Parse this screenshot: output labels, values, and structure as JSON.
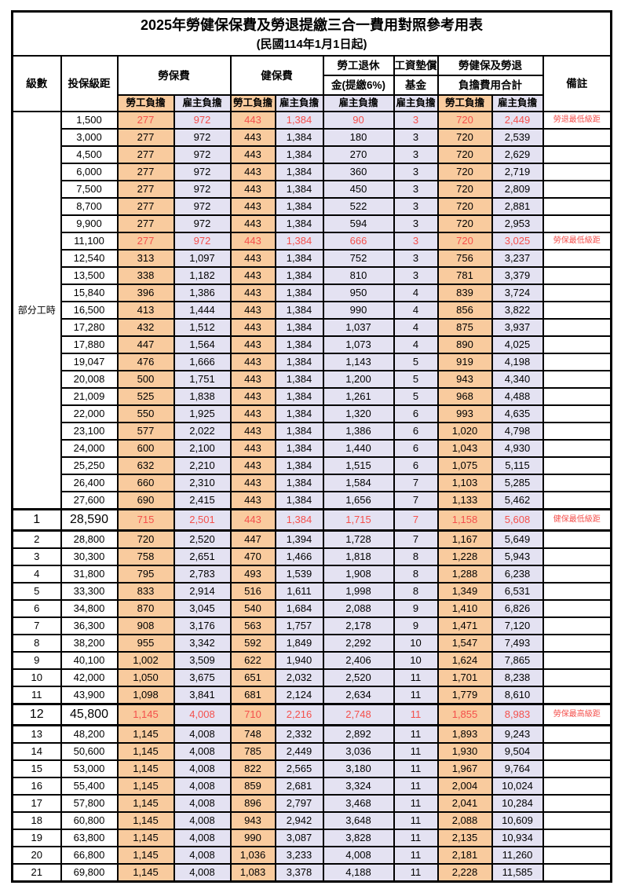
{
  "title": "2025年勞健保保費及勞退提繳三合一費用對照參考用表",
  "subtitle": "(民國114年1月1日起)",
  "header": {
    "level": "級數",
    "bracket": "投保級距",
    "labor_fee": "勞保費",
    "health_fee": "健保費",
    "pension_l1": "勞工退休",
    "pension_l2": "金(提繳6%)",
    "wage_fund_l1": "工資墊償",
    "wage_fund_l2": "基金",
    "total_l1": "勞健保及勞退",
    "total_l2": "負擔費用合計",
    "remark": "備註",
    "employee": "勞工負擔",
    "employer": "雇主負擔"
  },
  "part_time_label": "部分工時",
  "colors": {
    "employee_fill": "#F9CB9E",
    "employer_fill": "#E4E2F2",
    "highlight_text": "#F4504C",
    "grid": "#000000"
  },
  "rows": [
    {
      "level": "",
      "bracket": "1,500",
      "values": [
        "277",
        "972",
        "443",
        "1,384",
        "90",
        "3",
        "720",
        "2,449"
      ],
      "note": "勞退最低級距",
      "highlight": true,
      "emphasis": false
    },
    {
      "level": "",
      "bracket": "3,000",
      "values": [
        "277",
        "972",
        "443",
        "1,384",
        "180",
        "3",
        "720",
        "2,539"
      ],
      "note": "",
      "highlight": false,
      "emphasis": false
    },
    {
      "level": "",
      "bracket": "4,500",
      "values": [
        "277",
        "972",
        "443",
        "1,384",
        "270",
        "3",
        "720",
        "2,629"
      ],
      "note": "",
      "highlight": false,
      "emphasis": false
    },
    {
      "level": "",
      "bracket": "6,000",
      "values": [
        "277",
        "972",
        "443",
        "1,384",
        "360",
        "3",
        "720",
        "2,719"
      ],
      "note": "",
      "highlight": false,
      "emphasis": false
    },
    {
      "level": "",
      "bracket": "7,500",
      "values": [
        "277",
        "972",
        "443",
        "1,384",
        "450",
        "3",
        "720",
        "2,809"
      ],
      "note": "",
      "highlight": false,
      "emphasis": false
    },
    {
      "level": "",
      "bracket": "8,700",
      "values": [
        "277",
        "972",
        "443",
        "1,384",
        "522",
        "3",
        "720",
        "2,881"
      ],
      "note": "",
      "highlight": false,
      "emphasis": false
    },
    {
      "level": "",
      "bracket": "9,900",
      "values": [
        "277",
        "972",
        "443",
        "1,384",
        "594",
        "3",
        "720",
        "2,953"
      ],
      "note": "",
      "highlight": false,
      "emphasis": false
    },
    {
      "level": "",
      "bracket": "11,100",
      "values": [
        "277",
        "972",
        "443",
        "1,384",
        "666",
        "3",
        "720",
        "3,025"
      ],
      "note": "勞保最低級距",
      "highlight": true,
      "emphasis": false
    },
    {
      "level": "",
      "bracket": "12,540",
      "values": [
        "313",
        "1,097",
        "443",
        "1,384",
        "752",
        "3",
        "756",
        "3,237"
      ],
      "note": "",
      "highlight": false,
      "emphasis": false
    },
    {
      "level": "",
      "bracket": "13,500",
      "values": [
        "338",
        "1,182",
        "443",
        "1,384",
        "810",
        "3",
        "781",
        "3,379"
      ],
      "note": "",
      "highlight": false,
      "emphasis": false
    },
    {
      "level": "",
      "bracket": "15,840",
      "values": [
        "396",
        "1,386",
        "443",
        "1,384",
        "950",
        "4",
        "839",
        "3,724"
      ],
      "note": "",
      "highlight": false,
      "emphasis": false
    },
    {
      "level": "",
      "bracket": "16,500",
      "values": [
        "413",
        "1,444",
        "443",
        "1,384",
        "990",
        "4",
        "856",
        "3,822"
      ],
      "note": "",
      "highlight": false,
      "emphasis": false
    },
    {
      "level": "",
      "bracket": "17,280",
      "values": [
        "432",
        "1,512",
        "443",
        "1,384",
        "1,037",
        "4",
        "875",
        "3,937"
      ],
      "note": "",
      "highlight": false,
      "emphasis": false
    },
    {
      "level": "",
      "bracket": "17,880",
      "values": [
        "447",
        "1,564",
        "443",
        "1,384",
        "1,073",
        "4",
        "890",
        "4,025"
      ],
      "note": "",
      "highlight": false,
      "emphasis": false
    },
    {
      "level": "",
      "bracket": "19,047",
      "values": [
        "476",
        "1,666",
        "443",
        "1,384",
        "1,143",
        "5",
        "919",
        "4,198"
      ],
      "note": "",
      "highlight": false,
      "emphasis": false
    },
    {
      "level": "",
      "bracket": "20,008",
      "values": [
        "500",
        "1,751",
        "443",
        "1,384",
        "1,200",
        "5",
        "943",
        "4,340"
      ],
      "note": "",
      "highlight": false,
      "emphasis": false
    },
    {
      "level": "",
      "bracket": "21,009",
      "values": [
        "525",
        "1,838",
        "443",
        "1,384",
        "1,261",
        "5",
        "968",
        "4,488"
      ],
      "note": "",
      "highlight": false,
      "emphasis": false
    },
    {
      "level": "",
      "bracket": "22,000",
      "values": [
        "550",
        "1,925",
        "443",
        "1,384",
        "1,320",
        "6",
        "993",
        "4,635"
      ],
      "note": "",
      "highlight": false,
      "emphasis": false
    },
    {
      "level": "",
      "bracket": "23,100",
      "values": [
        "577",
        "2,022",
        "443",
        "1,384",
        "1,386",
        "6",
        "1,020",
        "4,798"
      ],
      "note": "",
      "highlight": false,
      "emphasis": false
    },
    {
      "level": "",
      "bracket": "24,000",
      "values": [
        "600",
        "2,100",
        "443",
        "1,384",
        "1,440",
        "6",
        "1,043",
        "4,930"
      ],
      "note": "",
      "highlight": false,
      "emphasis": false
    },
    {
      "level": "",
      "bracket": "25,250",
      "values": [
        "632",
        "2,210",
        "443",
        "1,384",
        "1,515",
        "6",
        "1,075",
        "5,115"
      ],
      "note": "",
      "highlight": false,
      "emphasis": false
    },
    {
      "level": "",
      "bracket": "26,400",
      "values": [
        "660",
        "2,310",
        "443",
        "1,384",
        "1,584",
        "7",
        "1,103",
        "5,285"
      ],
      "note": "",
      "highlight": false,
      "emphasis": false
    },
    {
      "level": "",
      "bracket": "27,600",
      "values": [
        "690",
        "2,415",
        "443",
        "1,384",
        "1,656",
        "7",
        "1,133",
        "5,462"
      ],
      "note": "",
      "highlight": false,
      "emphasis": false
    },
    {
      "level": "1",
      "bracket": "28,590",
      "values": [
        "715",
        "2,501",
        "443",
        "1,384",
        "1,715",
        "7",
        "1,158",
        "5,608"
      ],
      "note": "健保最低級距",
      "highlight": true,
      "emphasis": true
    },
    {
      "level": "2",
      "bracket": "28,800",
      "values": [
        "720",
        "2,520",
        "447",
        "1,394",
        "1,728",
        "7",
        "1,167",
        "5,649"
      ],
      "note": "",
      "highlight": false,
      "emphasis": false
    },
    {
      "level": "3",
      "bracket": "30,300",
      "values": [
        "758",
        "2,651",
        "470",
        "1,466",
        "1,818",
        "8",
        "1,228",
        "5,943"
      ],
      "note": "",
      "highlight": false,
      "emphasis": false
    },
    {
      "level": "4",
      "bracket": "31,800",
      "values": [
        "795",
        "2,783",
        "493",
        "1,539",
        "1,908",
        "8",
        "1,288",
        "6,238"
      ],
      "note": "",
      "highlight": false,
      "emphasis": false
    },
    {
      "level": "5",
      "bracket": "33,300",
      "values": [
        "833",
        "2,914",
        "516",
        "1,611",
        "1,998",
        "8",
        "1,349",
        "6,531"
      ],
      "note": "",
      "highlight": false,
      "emphasis": false
    },
    {
      "level": "6",
      "bracket": "34,800",
      "values": [
        "870",
        "3,045",
        "540",
        "1,684",
        "2,088",
        "9",
        "1,410",
        "6,826"
      ],
      "note": "",
      "highlight": false,
      "emphasis": false
    },
    {
      "level": "7",
      "bracket": "36,300",
      "values": [
        "908",
        "3,176",
        "563",
        "1,757",
        "2,178",
        "9",
        "1,471",
        "7,120"
      ],
      "note": "",
      "highlight": false,
      "emphasis": false
    },
    {
      "level": "8",
      "bracket": "38,200",
      "values": [
        "955",
        "3,342",
        "592",
        "1,849",
        "2,292",
        "10",
        "1,547",
        "7,493"
      ],
      "note": "",
      "highlight": false,
      "emphasis": false
    },
    {
      "level": "9",
      "bracket": "40,100",
      "values": [
        "1,002",
        "3,509",
        "622",
        "1,940",
        "2,406",
        "10",
        "1,624",
        "7,865"
      ],
      "note": "",
      "highlight": false,
      "emphasis": false
    },
    {
      "level": "10",
      "bracket": "42,000",
      "values": [
        "1,050",
        "3,675",
        "651",
        "2,032",
        "2,520",
        "11",
        "1,701",
        "8,238"
      ],
      "note": "",
      "highlight": false,
      "emphasis": false
    },
    {
      "level": "11",
      "bracket": "43,900",
      "values": [
        "1,098",
        "3,841",
        "681",
        "2,124",
        "2,634",
        "11",
        "1,779",
        "8,610"
      ],
      "note": "",
      "highlight": false,
      "emphasis": false
    },
    {
      "level": "12",
      "bracket": "45,800",
      "values": [
        "1,145",
        "4,008",
        "710",
        "2,216",
        "2,748",
        "11",
        "1,855",
        "8,983"
      ],
      "note": "勞保最高級距",
      "highlight": true,
      "emphasis": true
    },
    {
      "level": "13",
      "bracket": "48,200",
      "values": [
        "1,145",
        "4,008",
        "748",
        "2,332",
        "2,892",
        "11",
        "1,893",
        "9,243"
      ],
      "note": "",
      "highlight": false,
      "emphasis": false
    },
    {
      "level": "14",
      "bracket": "50,600",
      "values": [
        "1,145",
        "4,008",
        "785",
        "2,449",
        "3,036",
        "11",
        "1,930",
        "9,504"
      ],
      "note": "",
      "highlight": false,
      "emphasis": false
    },
    {
      "level": "15",
      "bracket": "53,000",
      "values": [
        "1,145",
        "4,008",
        "822",
        "2,565",
        "3,180",
        "11",
        "1,967",
        "9,764"
      ],
      "note": "",
      "highlight": false,
      "emphasis": false
    },
    {
      "level": "16",
      "bracket": "55,400",
      "values": [
        "1,145",
        "4,008",
        "859",
        "2,681",
        "3,324",
        "11",
        "2,004",
        "10,024"
      ],
      "note": "",
      "highlight": false,
      "emphasis": false
    },
    {
      "level": "17",
      "bracket": "57,800",
      "values": [
        "1,145",
        "4,008",
        "896",
        "2,797",
        "3,468",
        "11",
        "2,041",
        "10,284"
      ],
      "note": "",
      "highlight": false,
      "emphasis": false
    },
    {
      "level": "18",
      "bracket": "60,800",
      "values": [
        "1,145",
        "4,008",
        "943",
        "2,942",
        "3,648",
        "11",
        "2,088",
        "10,609"
      ],
      "note": "",
      "highlight": false,
      "emphasis": false
    },
    {
      "level": "19",
      "bracket": "63,800",
      "values": [
        "1,145",
        "4,008",
        "990",
        "3,087",
        "3,828",
        "11",
        "2,135",
        "10,934"
      ],
      "note": "",
      "highlight": false,
      "emphasis": false
    },
    {
      "level": "20",
      "bracket": "66,800",
      "values": [
        "1,145",
        "4,008",
        "1,036",
        "3,233",
        "4,008",
        "11",
        "2,181",
        "11,260"
      ],
      "note": "",
      "highlight": false,
      "emphasis": false
    },
    {
      "level": "21",
      "bracket": "69,800",
      "values": [
        "1,145",
        "4,008",
        "1,083",
        "3,378",
        "4,188",
        "11",
        "2,228",
        "11,585"
      ],
      "note": "",
      "highlight": false,
      "emphasis": false
    }
  ]
}
